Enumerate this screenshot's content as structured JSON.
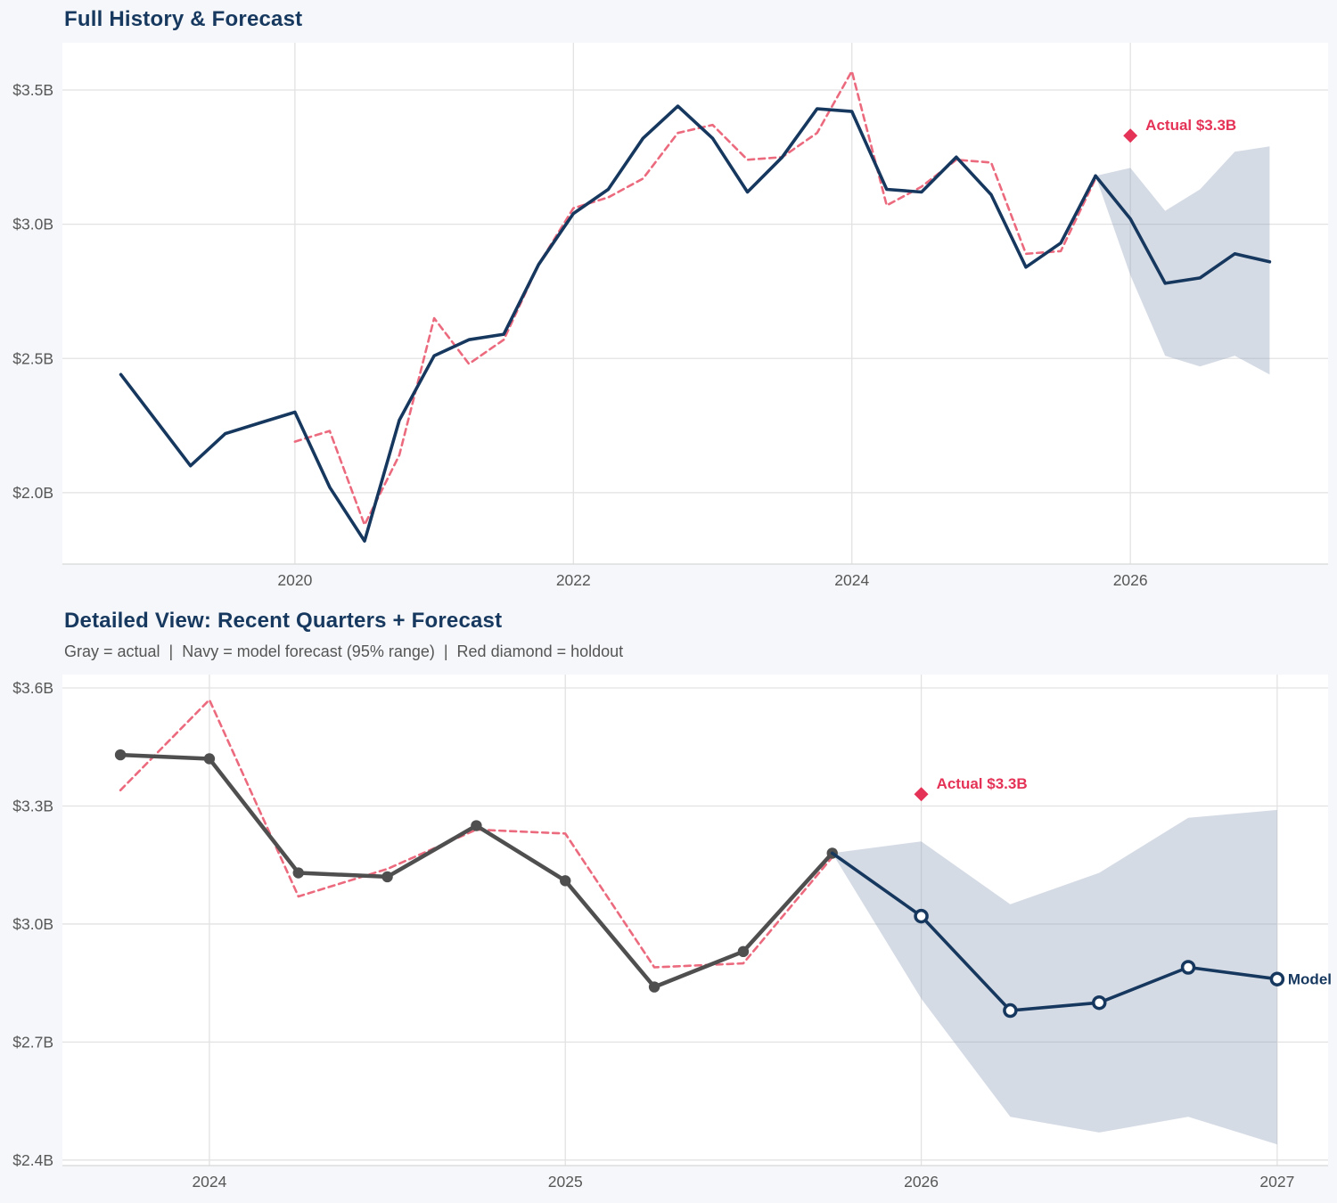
{
  "colors": {
    "page_bg": "#f5f7fa",
    "plot_bg": "#ffffff",
    "grid": "#e2e2e2",
    "spine": "#d8d8d8",
    "navy": "#16375e",
    "pink_dashed": "#ec6a7e",
    "crimson": "#e43357",
    "gray_line": "#4f4f4f",
    "band_fill": "rgba(150,165,190,0.4)",
    "tick_text": "#575757",
    "title_text": "#17395f",
    "subtitle_text": "#555555"
  },
  "chart_data": [
    {
      "id": "full-history",
      "type": "line",
      "title": "Full History & Forecast",
      "xlabel": "",
      "ylabel": "",
      "grid": true,
      "legend": "none",
      "x_tick_labels": [
        "2020",
        "2022",
        "2024",
        "2026"
      ],
      "x_tick_values": [
        2020,
        2022,
        2024,
        2026
      ],
      "y_tick_labels": [
        "$3.5B",
        "$3.0B",
        "$2.5B",
        "$2.0B"
      ],
      "y_tick_values": [
        3.5,
        3.0,
        2.5,
        2.0
      ],
      "xlim": [
        2018.33,
        2027.42
      ],
      "ylim": [
        1.734,
        3.676
      ],
      "series": [
        {
          "name": "actual-history",
          "style": "solid-navy",
          "markers": "none",
          "x": [
            2018.75,
            2019.0,
            2019.25,
            2019.5,
            2019.75,
            2020.0,
            2020.25,
            2020.5,
            2020.75,
            2021.0,
            2021.25,
            2021.5,
            2021.75,
            2022.0,
            2022.25,
            2022.5,
            2022.75,
            2023.0,
            2023.25,
            2023.5,
            2023.75,
            2024.0,
            2024.25,
            2024.5,
            2024.75,
            2025.0,
            2025.25,
            2025.5,
            2025.75
          ],
          "y": [
            2.44,
            2.27,
            2.1,
            2.22,
            2.26,
            2.3,
            2.02,
            1.82,
            2.27,
            2.51,
            2.57,
            2.59,
            2.85,
            3.04,
            3.13,
            3.32,
            3.44,
            3.32,
            3.12,
            3.25,
            3.43,
            3.42,
            3.13,
            3.12,
            3.25,
            3.11,
            2.84,
            2.93,
            3.18
          ]
        },
        {
          "name": "model-fitted",
          "style": "dashed-pink",
          "markers": "none",
          "x": [
            2020.0,
            2020.25,
            2020.5,
            2020.75,
            2021.0,
            2021.25,
            2021.5,
            2021.75,
            2022.0,
            2022.25,
            2022.5,
            2022.75,
            2023.0,
            2023.25,
            2023.5,
            2023.75,
            2024.0,
            2024.25,
            2024.5,
            2024.75,
            2025.0,
            2025.25,
            2025.5,
            2025.75
          ],
          "y": [
            2.19,
            2.23,
            1.88,
            2.14,
            2.65,
            2.48,
            2.57,
            2.85,
            3.06,
            3.1,
            3.17,
            3.34,
            3.37,
            3.24,
            3.25,
            3.34,
            3.57,
            3.07,
            3.14,
            3.24,
            3.23,
            2.89,
            2.9,
            3.17
          ]
        },
        {
          "name": "model-forecast",
          "style": "solid-navy",
          "markers": "none",
          "x": [
            2025.75,
            2026.0,
            2026.25,
            2026.5,
            2026.75,
            2027.0
          ],
          "y": [
            3.18,
            3.02,
            2.78,
            2.8,
            2.89,
            2.86
          ]
        }
      ],
      "band": {
        "name": "forecast-95-range",
        "x": [
          2025.75,
          2026.0,
          2026.25,
          2026.5,
          2026.75,
          2027.0
        ],
        "lower": [
          3.18,
          2.81,
          2.51,
          2.47,
          2.51,
          2.44
        ],
        "upper": [
          3.18,
          3.21,
          3.05,
          3.13,
          3.27,
          3.29
        ]
      },
      "annotation": {
        "label": "Actual $3.3B",
        "x": 2026.0,
        "y": 3.33,
        "marker": "diamond"
      }
    },
    {
      "id": "detailed-view",
      "type": "line",
      "title": "Detailed View: Recent Quarters + Forecast",
      "subtitle": "Gray = actual  |  Navy = model forecast (95% range)  |  Red diamond = holdout",
      "xlabel": "",
      "ylabel": "",
      "grid": true,
      "legend": "none",
      "x_tick_labels": [
        "2024",
        "2025",
        "2026",
        "2027"
      ],
      "x_tick_values": [
        2024,
        2025,
        2026,
        2027
      ],
      "y_tick_labels": [
        "$3.6B",
        "$3.3B",
        "$3.0B",
        "$2.7B",
        "$2.4B"
      ],
      "y_tick_values": [
        3.6,
        3.3,
        3.0,
        2.7,
        2.4
      ],
      "xlim": [
        2023.587,
        2027.143
      ],
      "ylim": [
        2.386,
        3.634
      ],
      "series": [
        {
          "name": "model-fitted",
          "style": "dashed-pink",
          "markers": "none",
          "x": [
            2023.75,
            2024.0,
            2024.25,
            2024.5,
            2024.75,
            2025.0,
            2025.25,
            2025.5,
            2025.75
          ],
          "y": [
            3.34,
            3.57,
            3.07,
            3.14,
            3.24,
            3.23,
            2.89,
            2.9,
            3.17
          ]
        },
        {
          "name": "actual-history",
          "style": "solid-gray",
          "markers": "dot",
          "x": [
            2023.75,
            2024.0,
            2024.25,
            2024.5,
            2024.75,
            2025.0,
            2025.25,
            2025.5,
            2025.75
          ],
          "y": [
            3.43,
            3.42,
            3.13,
            3.12,
            3.25,
            3.11,
            2.84,
            2.93,
            3.18
          ]
        },
        {
          "name": "model-forecast",
          "style": "solid-navy",
          "markers": "open-circle",
          "marker_skip_first": true,
          "end_label": "Model",
          "x": [
            2025.75,
            2026.0,
            2026.25,
            2026.5,
            2026.75,
            2027.0
          ],
          "y": [
            3.18,
            3.02,
            2.78,
            2.8,
            2.89,
            2.86
          ]
        }
      ],
      "band": {
        "name": "forecast-95-range",
        "x": [
          2025.75,
          2026.0,
          2026.25,
          2026.5,
          2026.75,
          2027.0
        ],
        "lower": [
          3.18,
          2.81,
          2.51,
          2.47,
          2.51,
          2.44
        ],
        "upper": [
          3.18,
          3.21,
          3.05,
          3.13,
          3.27,
          3.29
        ]
      },
      "annotation": {
        "label": "Actual $3.3B",
        "x": 2026.0,
        "y": 3.33,
        "marker": "diamond"
      }
    }
  ]
}
